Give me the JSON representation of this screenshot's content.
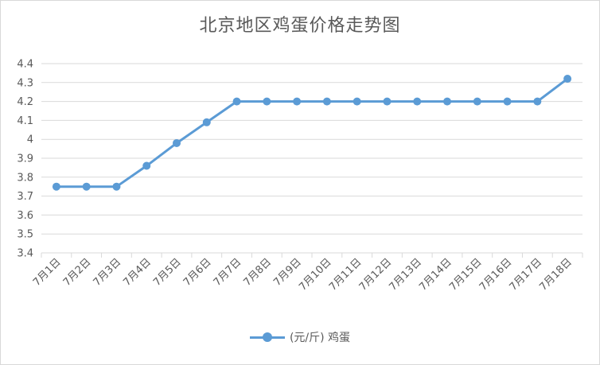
{
  "chart_data": {
    "type": "line",
    "title": "北京地区鸡蛋价格走势图",
    "categories": [
      "7月1日",
      "7月2日",
      "7月3日",
      "7月4日",
      "7月5日",
      "7月6日",
      "7月7日",
      "7月8日",
      "7月9日",
      "7月10日",
      "7月11日",
      "7月12日",
      "7月13日",
      "7月14日",
      "7月15日",
      "7月16日",
      "7月17日",
      "7月18日"
    ],
    "series": [
      {
        "name": "(元/斤) 鸡蛋",
        "color": "#5B9BD5",
        "values": [
          3.75,
          3.75,
          3.75,
          3.86,
          3.98,
          4.09,
          4.2,
          4.2,
          4.2,
          4.2,
          4.2,
          4.2,
          4.2,
          4.2,
          4.2,
          4.2,
          4.2,
          4.32
        ]
      }
    ],
    "ylim": [
      3.4,
      4.4
    ],
    "yticks": [
      "3.4",
      "3.5",
      "3.6",
      "3.7",
      "3.8",
      "3.9",
      "4",
      "4.1",
      "4.2",
      "4.3",
      "4.4"
    ],
    "grid": true,
    "legend_position": "bottom"
  }
}
